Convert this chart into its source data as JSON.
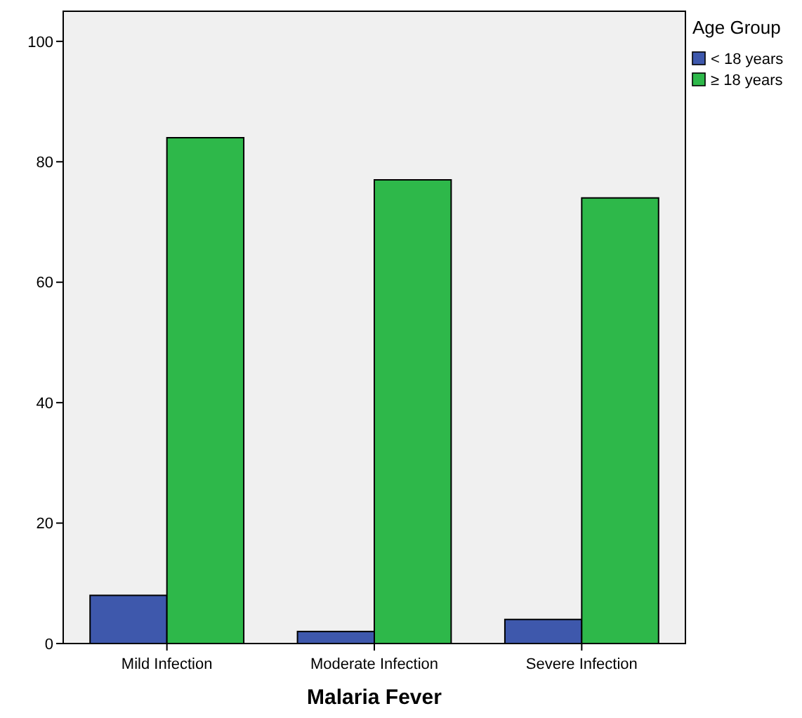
{
  "chart_data": {
    "type": "bar",
    "xlabel": "Malaria Fever",
    "legend_title": "Age Group",
    "categories": [
      "Mild Infection",
      "Moderate Infection",
      "Severe Infection"
    ],
    "series": [
      {
        "name": "< 18 years",
        "color": "#3e58ac",
        "values": [
          8,
          2,
          4
        ]
      },
      {
        "name": "≥ 18 years",
        "color": "#2eb84a",
        "values": [
          84,
          77,
          74
        ]
      }
    ],
    "ylim": [
      0,
      105
    ],
    "yticks": [
      0,
      20,
      40,
      60,
      80,
      100
    ],
    "grid": false,
    "legend": "top right"
  }
}
